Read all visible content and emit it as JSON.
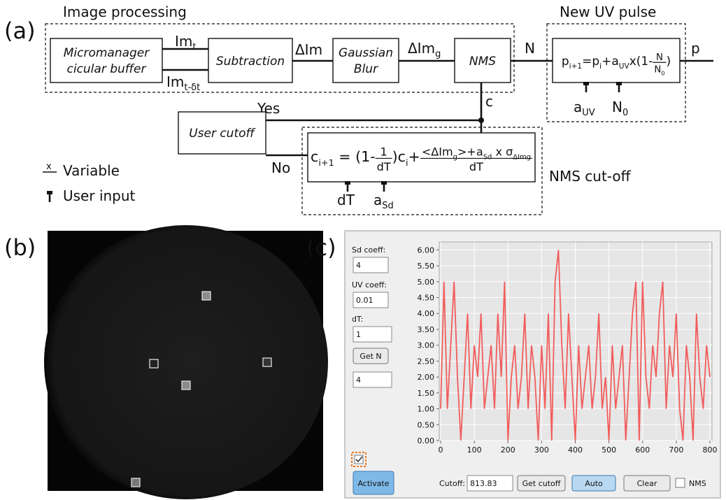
{
  "diagram": {
    "label": "(a)",
    "image_processing": "Image processing",
    "micromanager": [
      "Micromanager",
      "cicular buffer"
    ],
    "subtraction": "Subtraction",
    "gaussian": [
      "Gaussian",
      "Blur"
    ],
    "nms": "NMS",
    "im_t": {
      "main": "Im",
      "sub": "t"
    },
    "im_tdt": {
      "main": "Im",
      "sub": "t-δt"
    },
    "dim": "ΔIm",
    "dim_g": {
      "main": "ΔIm",
      "sub": "g"
    },
    "n": "N",
    "p": "p",
    "new_uv": "New UV pulse",
    "c": "c",
    "yes": "Yes",
    "no": "No",
    "user_cutoff": "User cutoff",
    "nms_cutoff": "NMS cut-off",
    "a_uv": {
      "main": "a",
      "sub": "UV"
    },
    "n0": {
      "main": "N",
      "sub": "0"
    },
    "dt": "dT",
    "a_sd": {
      "main": "a",
      "sub": "Sd"
    },
    "legend_variable_symbol": "x",
    "legend_variable": "Variable",
    "legend_user_input": "User input",
    "uv_formula": [
      {
        "t": "p"
      },
      {
        "s": "i+1"
      },
      {
        "t": "=p"
      },
      {
        "s": "i"
      },
      {
        "t": "+a"
      },
      {
        "s": "UV"
      },
      {
        "t": "x(1-"
      },
      {
        "num": [
          {
            "t": "N"
          }
        ],
        "den": [
          {
            "t": "N"
          },
          {
            "s": "0"
          }
        ]
      },
      {
        "t": ")"
      }
    ],
    "cutoff_formula": [
      {
        "t": "c"
      },
      {
        "s": "i+1"
      },
      {
        "t": " = (1-"
      },
      {
        "num": [
          {
            "t": "1"
          }
        ],
        "den": [
          {
            "t": "dT"
          }
        ]
      },
      {
        "t": ")c"
      },
      {
        "s": "i"
      },
      {
        "t": "+"
      },
      {
        "num": [
          {
            "t": "<ΔIm"
          },
          {
            "s": "g"
          },
          {
            "t": ">+a"
          },
          {
            "s": "Sd"
          },
          {
            "t": " x σ"
          },
          {
            "s": "ΔIm"
          },
          {
            "s": "g"
          }
        ],
        "den": [
          {
            "t": "dT"
          }
        ]
      }
    ]
  },
  "image_panel": {
    "label": "(b)"
  },
  "gui": {
    "label": "(c)",
    "sd_coeff_label": "Sd coeff:",
    "sd_coeff_value": "4",
    "uv_coeff_label": "UV coeff:",
    "uv_coeff_value": "0.01",
    "dt_label": "dT:",
    "dt_value": "1",
    "get_n": "Get N",
    "n_value": "4",
    "activate": "Activate",
    "cutoff_label": "Cutoff:",
    "cutoff_value": "813.83",
    "get_cutoff": "Get cutoff",
    "auto": "Auto",
    "clear": "Clear",
    "nms": "NMS"
  },
  "chart_data": {
    "type": "line",
    "color": "#f25c5c",
    "grid": true,
    "x": [
      0,
      10,
      20,
      30,
      40,
      50,
      60,
      70,
      80,
      90,
      100,
      110,
      120,
      130,
      140,
      150,
      160,
      170,
      180,
      190,
      200,
      210,
      220,
      230,
      240,
      250,
      260,
      270,
      280,
      290,
      300,
      310,
      320,
      330,
      340,
      350,
      360,
      370,
      380,
      390,
      400,
      410,
      420,
      430,
      440,
      450,
      460,
      470,
      480,
      490,
      500,
      510,
      520,
      530,
      540,
      550,
      560,
      570,
      580,
      590,
      600,
      610,
      620,
      630,
      640,
      650,
      660,
      670,
      680,
      690,
      700,
      710,
      720,
      730,
      740,
      750,
      760,
      770,
      780,
      790,
      800
    ],
    "values": [
      1,
      5,
      1,
      3,
      5,
      2,
      0,
      2,
      4,
      1,
      3,
      2,
      4,
      1,
      2,
      3,
      1,
      4,
      2,
      5,
      0,
      2,
      3,
      1,
      2,
      4,
      1,
      3,
      2,
      0,
      3,
      1,
      4,
      0,
      5,
      6,
      3,
      1,
      4,
      2,
      0,
      3,
      1,
      2,
      3,
      1,
      2,
      4,
      1,
      2,
      0,
      3,
      1,
      2,
      3,
      0,
      2,
      4,
      5,
      0,
      5,
      2,
      1,
      3,
      2,
      4,
      5,
      1,
      3,
      2,
      4,
      1,
      0,
      3,
      2,
      0,
      4,
      2,
      1,
      3,
      2
    ],
    "xlim": [
      0,
      800
    ],
    "xticks": [
      0,
      100,
      200,
      300,
      400,
      500,
      600,
      700,
      800
    ],
    "ylim": [
      0,
      6.25
    ],
    "yticks": [
      {
        "value": 0,
        "label": "0.00"
      },
      {
        "value": 0.5,
        "label": "0.50"
      },
      {
        "value": 1,
        "label": "1.00"
      },
      {
        "value": 1.5,
        "label": "1.50"
      },
      {
        "value": 2,
        "label": "2.00"
      },
      {
        "value": 2.5,
        "label": "2.50"
      },
      {
        "value": 3,
        "label": "3.00"
      },
      {
        "value": 3.5,
        "label": "3.50"
      },
      {
        "value": 4,
        "label": "4.00"
      },
      {
        "value": 4.5,
        "label": "4.50"
      },
      {
        "value": 5,
        "label": "5.00"
      },
      {
        "value": 5.5,
        "label": "5.50"
      },
      {
        "value": 6,
        "label": "6.00"
      }
    ]
  }
}
